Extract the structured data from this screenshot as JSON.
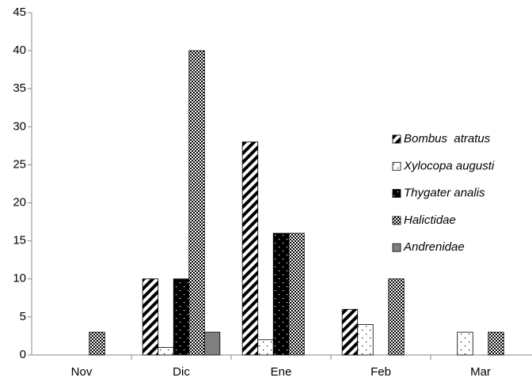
{
  "chart_data": {
    "type": "bar",
    "categories": [
      "Nov",
      "Dic",
      "Ene",
      "Feb",
      "Mar"
    ],
    "series": [
      {
        "name": "Bombus  atratus",
        "values": [
          0,
          10,
          28,
          6,
          0
        ]
      },
      {
        "name": "Xylocopa augusti",
        "values": [
          0,
          1,
          2,
          4,
          3
        ]
      },
      {
        "name": "Thygater analis",
        "values": [
          0,
          10,
          16,
          0,
          0
        ]
      },
      {
        "name": "Halictidae",
        "values": [
          3,
          40,
          16,
          10,
          3
        ]
      },
      {
        "name": "Andrenidae",
        "values": [
          0,
          3,
          0,
          0,
          0
        ]
      }
    ],
    "ylim": [
      0,
      45
    ],
    "yticks": [
      0,
      5,
      10,
      15,
      20,
      25,
      30,
      35,
      40,
      45
    ],
    "legend": "right"
  }
}
